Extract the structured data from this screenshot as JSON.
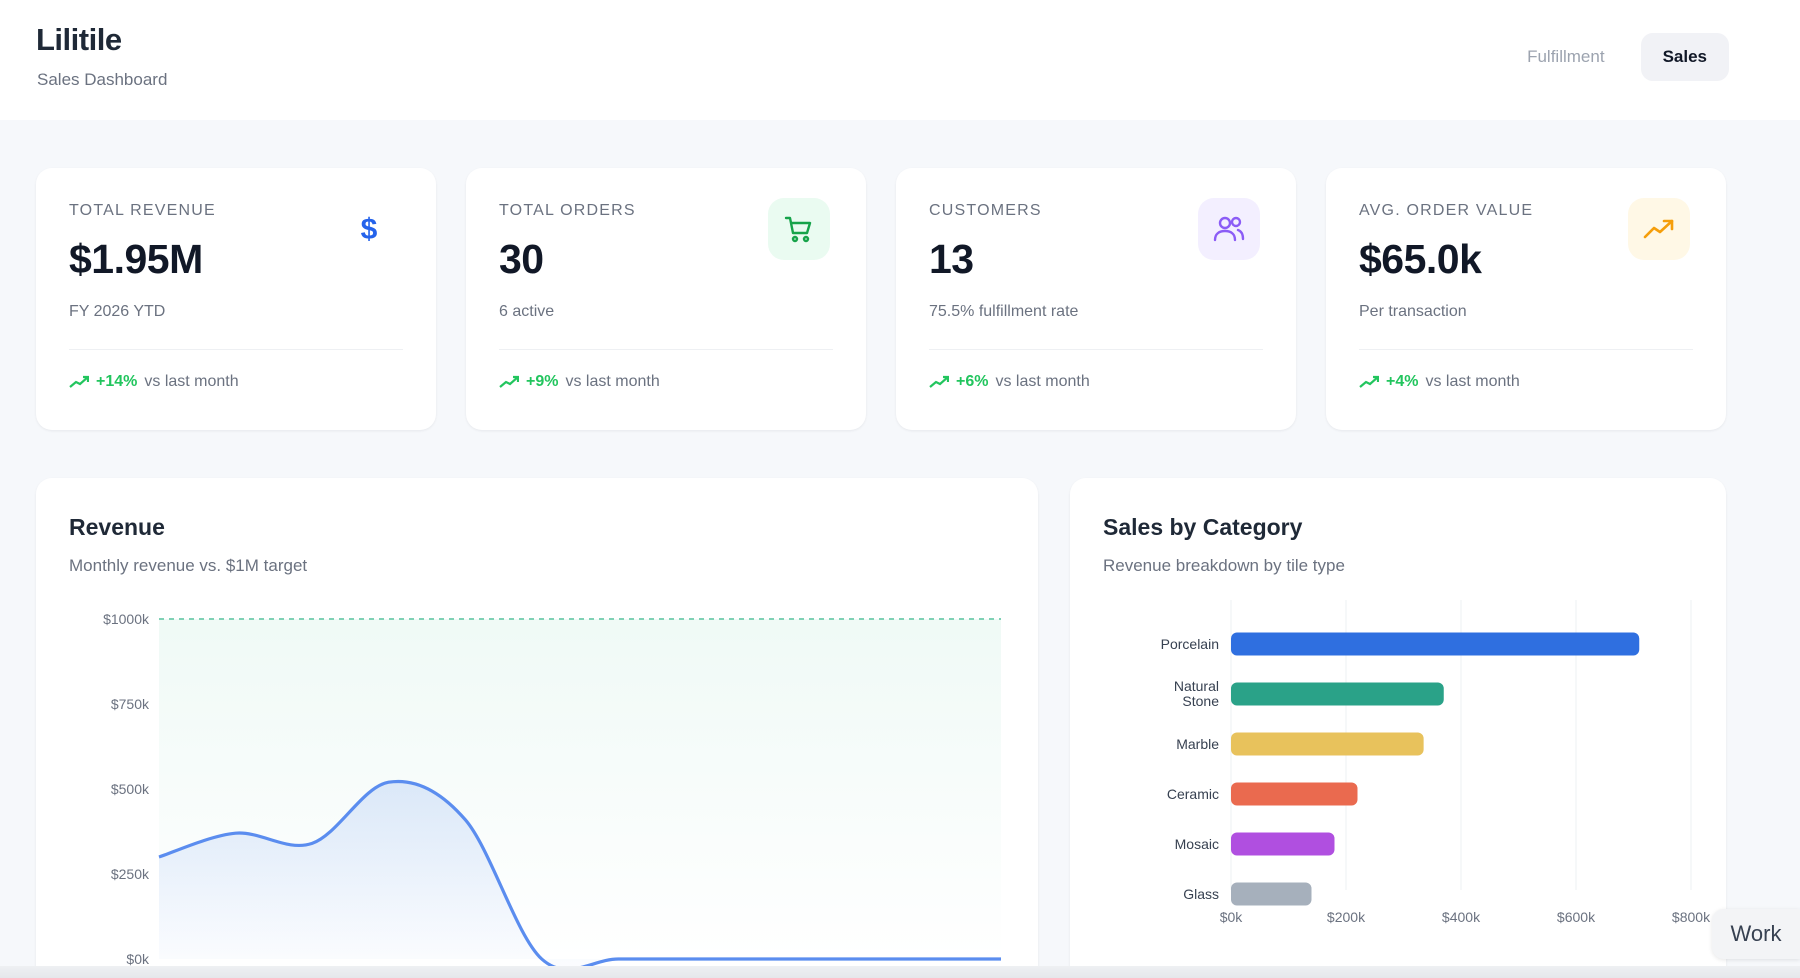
{
  "app": {
    "title": "Lilitile",
    "subtitle": "Sales Dashboard"
  },
  "tabs": [
    {
      "label": "Fulfillment",
      "active": false
    },
    {
      "label": "Sales",
      "active": true
    }
  ],
  "kpis": [
    {
      "label": "Total Revenue",
      "value": "$1.95M",
      "sub": "FY 2026 YTD",
      "delta": "+14%",
      "delta_text": "vs last month",
      "icon": "dollar-icon",
      "icon_color": "#2563eb",
      "icon_bg": "#ffffff"
    },
    {
      "label": "Total Orders",
      "value": "30",
      "sub": "6 active",
      "delta": "+9%",
      "delta_text": "vs last month",
      "icon": "cart-icon",
      "icon_color": "#16a34a",
      "icon_bg": "#eafbf1"
    },
    {
      "label": "Customers",
      "value": "13",
      "sub": "75.5% fulfillment rate",
      "delta": "+6%",
      "delta_text": "vs last month",
      "icon": "users-icon",
      "icon_color": "#8b5cf6",
      "icon_bg": "#f3efff"
    },
    {
      "label": "Avg. Order Value",
      "value": "$65.0k",
      "sub": "Per transaction",
      "delta": "+4%",
      "delta_text": "vs last month",
      "icon": "trending-up-icon",
      "icon_color": "#f59e0b",
      "icon_bg": "#fff8e6"
    }
  ],
  "revenue_panel": {
    "title": "Revenue",
    "subtitle": "Monthly revenue vs. $1M target"
  },
  "category_panel": {
    "title": "Sales by Category",
    "subtitle": "Revenue breakdown by tile type"
  },
  "work_tab": "Work",
  "colors": {
    "accent": "#5b8def",
    "positive": "#22c55e",
    "target_line": "#7fd1b5"
  },
  "chart_data": [
    {
      "type": "area",
      "title": "Revenue",
      "subtitle": "Monthly revenue vs. $1M target",
      "y_ticks": [
        "$1000k",
        "$750k",
        "$500k",
        "$250k",
        "$0k"
      ],
      "ylim": [
        0,
        1000
      ],
      "y_unit": "k",
      "target": 1000,
      "series": [
        {
          "values": [
            300,
            370,
            340,
            520,
            410,
            0,
            0,
            0,
            0,
            0,
            0,
            0
          ]
        }
      ],
      "grid": false
    },
    {
      "type": "bar",
      "orientation": "horizontal",
      "title": "Sales by Category",
      "subtitle": "Revenue breakdown by tile type",
      "categories": [
        "Porcelain",
        "Natural Stone",
        "Marble",
        "Ceramic",
        "Mosaic",
        "Glass"
      ],
      "values": [
        710,
        370,
        335,
        220,
        180,
        140
      ],
      "colors": [
        "#2f6fe0",
        "#2aa288",
        "#e8c25c",
        "#ea6a4f",
        "#b04fe0",
        "#a6b0bc"
      ],
      "x_ticks": [
        "$0k",
        "$200k",
        "$400k",
        "$600k",
        "$800k"
      ],
      "xlim": [
        0,
        800
      ],
      "grid": true
    }
  ]
}
